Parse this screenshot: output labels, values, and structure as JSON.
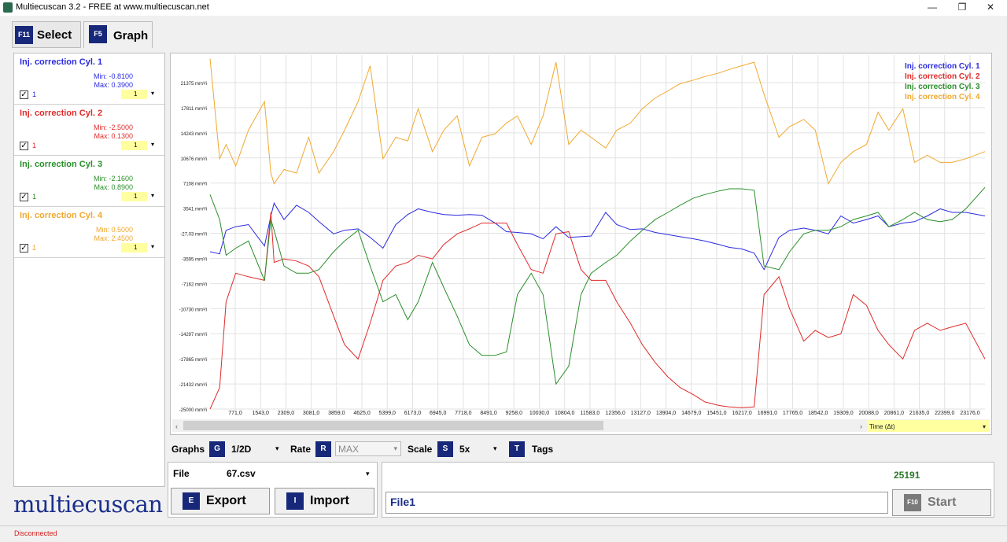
{
  "window": {
    "title": "Multiecuscan 3.2 - FREE at www.multiecuscan.net",
    "minimize": "—",
    "restore": "❐",
    "close": "✕"
  },
  "tabs": [
    {
      "key": "F11",
      "label": "Select"
    },
    {
      "key": "F5",
      "label": "Graph"
    }
  ],
  "params": [
    {
      "name": "Inj. correction Cyl. 1",
      "min": "Min: -0.8100",
      "max": "Max: 0.3900",
      "num": "1",
      "sel": "1",
      "color": "#2a2ae0"
    },
    {
      "name": "Inj. correction Cyl. 2",
      "min": "Min: -2.5000",
      "max": "Max: 0.1300",
      "num": "1",
      "sel": "1",
      "color": "#e02a2a"
    },
    {
      "name": "Inj. correction Cyl. 3",
      "min": "Min: -2.1600",
      "max": "Max: 0.8900",
      "num": "1",
      "sel": "1",
      "color": "#2a8f2a"
    },
    {
      "name": "Inj. correction Cyl. 4",
      "min": "Min: 0.5000",
      "max": "Max: 2.4500",
      "num": "1",
      "sel": "1",
      "color": "#f0a830"
    }
  ],
  "logo": "multiecuscan",
  "controls": {
    "graphs_label": "Graphs",
    "graphs_key": "G",
    "graphs_value": "1/2D",
    "rate_label": "Rate",
    "rate_key": "R",
    "rate_value": "MAX",
    "scale_label": "Scale",
    "scale_key": "S",
    "scale_value": "5x",
    "tags_key": "T",
    "tags_label": "Tags"
  },
  "file": {
    "label": "File",
    "value": "67.csv"
  },
  "buttons": {
    "export_key": "E",
    "export_label": "Export",
    "import_key": "I",
    "import_label": "Import",
    "start_key": "F10",
    "start_label": "Start"
  },
  "log_text": "File1",
  "counter": "25191",
  "status": "Disconnected",
  "time_axis_label": "Time (Δt)",
  "chart_data": {
    "type": "line",
    "y_ticks": [
      "21375 mm³/i",
      "17811 mm³/i",
      "14243 mm³/i",
      "10676 mm³/i",
      "7108 mm³/i",
      "3541 mm³/i",
      "-27,03 mm³/i",
      "-3595 mm³/i",
      "-7162 mm³/i",
      "-10730 mm³/i",
      "-14297 mm³/i",
      "-17865 mm³/i",
      "-21432 mm³/i",
      "-25000 mm³/i"
    ],
    "x_ticks": [
      "771,0",
      "1543,0",
      "2309,0",
      "3081,0",
      "3859,0",
      "4625,0",
      "5399,0",
      "6173,0",
      "6945,0",
      "7718,0",
      "8491,0",
      "9258,0",
      "10030,0",
      "10804,0",
      "11583,0",
      "12356,0",
      "13127,0",
      "13904,0",
      "14679,0",
      "15451,0",
      "16217,0",
      "16991,0",
      "17765,0",
      "18542,0",
      "19309,0",
      "20088,0",
      "20861,0",
      "21635,0",
      "22399,0",
      "23176,0"
    ],
    "x_range": [
      0,
      24200
    ],
    "ylim": [
      -25000,
      24500
    ],
    "series": [
      {
        "name": "Inj. correction Cyl. 1",
        "color": "#2a2ae0",
        "x": [
          0,
          300,
          500,
          800,
          1200,
          1700,
          1900,
          2000,
          2309,
          2700,
          3081,
          3400,
          3859,
          4200,
          4625,
          5000,
          5399,
          5800,
          6173,
          6500,
          6945,
          7300,
          7718,
          8100,
          8491,
          8900,
          9258,
          9600,
          10030,
          10400,
          10804,
          11200,
          11583,
          11900,
          12356,
          12700,
          13127,
          13500,
          13904,
          14300,
          14679,
          15100,
          15451,
          15900,
          16217,
          16600,
          16991,
          17300,
          17765,
          18100,
          18542,
          18900,
          19309,
          19700,
          20088,
          20500,
          20861,
          21200,
          21635,
          22000,
          22399,
          22800,
          23176,
          23600,
          24200
        ],
        "y": [
          -3000,
          -3300,
          0,
          500,
          800,
          -2200,
          2000,
          3800,
          1500,
          3500,
          2500,
          1200,
          -500,
          0,
          200,
          -1000,
          -2500,
          800,
          2200,
          3000,
          2500,
          2200,
          2100,
          2200,
          2100,
          1000,
          -200,
          -300,
          -500,
          -1200,
          500,
          -1000,
          -900,
          -800,
          2500,
          800,
          100,
          200,
          -300,
          -600,
          -900,
          -1200,
          -1500,
          -2000,
          -2400,
          -2600,
          -3200,
          -5500,
          -1000,
          0,
          300,
          0,
          -500,
          2000,
          1000,
          1500,
          2000,
          500,
          1000,
          1200,
          2000,
          3000,
          2500,
          2500,
          2000
        ]
      },
      {
        "name": "Inj. correction Cyl. 2",
        "color": "#e02a2a",
        "x": [
          0,
          300,
          500,
          800,
          1200,
          1700,
          1900,
          2000,
          2309,
          2700,
          3081,
          3400,
          3859,
          4200,
          4625,
          5000,
          5399,
          5800,
          6173,
          6500,
          6945,
          7300,
          7718,
          8100,
          8491,
          8900,
          9258,
          9600,
          10030,
          10400,
          10804,
          11200,
          11583,
          11900,
          12356,
          12700,
          13127,
          13500,
          13904,
          14300,
          14679,
          15100,
          15451,
          15900,
          16217,
          16600,
          16991,
          17300,
          17765,
          18100,
          18542,
          18900,
          19309,
          19700,
          20088,
          20500,
          20861,
          21200,
          21635,
          22000,
          22399,
          22800,
          23176,
          23600,
          24200
        ],
        "y": [
          -25000,
          -22000,
          -10000,
          -6000,
          -6500,
          -7000,
          2500,
          -4500,
          -4000,
          -4300,
          -5000,
          -6500,
          -12000,
          -16000,
          -18000,
          -13000,
          -7000,
          -5000,
          -4500,
          -3500,
          -4000,
          -2000,
          -500,
          200,
          1000,
          1000,
          1000,
          -2000,
          -5500,
          -6000,
          -500,
          -200,
          -5500,
          -7000,
          -7000,
          -10000,
          -13000,
          -16000,
          -18500,
          -20500,
          -22000,
          -23000,
          -24000,
          -24500,
          -24700,
          -24800,
          -24700,
          -9000,
          -6500,
          -11000,
          -15500,
          -14000,
          -15000,
          -14500,
          -9000,
          -10500,
          -14000,
          -16000,
          -18000,
          -14000,
          -13000,
          -14000,
          -13500,
          -13000,
          -18000
        ]
      },
      {
        "name": "Inj. correction Cyl. 3",
        "color": "#2a8f2a",
        "x": [
          0,
          300,
          500,
          800,
          1200,
          1700,
          1900,
          2000,
          2309,
          2700,
          3081,
          3400,
          3859,
          4200,
          4625,
          5000,
          5399,
          5800,
          6173,
          6500,
          6945,
          7300,
          7718,
          8100,
          8491,
          8900,
          9258,
          9600,
          10030,
          10400,
          10804,
          11200,
          11583,
          11900,
          12356,
          12700,
          13127,
          13500,
          13904,
          14300,
          14679,
          15100,
          15451,
          15900,
          16217,
          16600,
          16991,
          17300,
          17765,
          18100,
          18542,
          18900,
          19309,
          19700,
          20088,
          20500,
          20861,
          21200,
          21635,
          22000,
          22399,
          22800,
          23176,
          23600,
          24200
        ],
        "y": [
          5000,
          1500,
          -3500,
          -2500,
          -1500,
          -7000,
          1500,
          0,
          -5000,
          -6000,
          -6000,
          -5500,
          -3000,
          -1500,
          0,
          -5000,
          -10000,
          -9000,
          -12500,
          -10000,
          -4500,
          -8000,
          -12000,
          -16000,
          -17500,
          -17500,
          -17000,
          -9000,
          -6000,
          -9000,
          -21500,
          -19000,
          -9000,
          -6000,
          -4500,
          -3500,
          -1500,
          0,
          1500,
          2500,
          3500,
          4500,
          5000,
          5500,
          5800,
          5800,
          5600,
          -5000,
          -5500,
          -3000,
          -500,
          0,
          0,
          500,
          1500,
          2000,
          2500,
          500,
          1500,
          2500,
          1500,
          1200,
          1500,
          3000,
          6000
        ]
      },
      {
        "name": "Inj. correction Cyl. 4",
        "color": "#f0a830",
        "x": [
          0,
          300,
          500,
          800,
          1200,
          1700,
          1900,
          2000,
          2309,
          2700,
          3081,
          3400,
          3859,
          4200,
          4625,
          5000,
          5399,
          5800,
          6173,
          6500,
          6945,
          7300,
          7718,
          8100,
          8491,
          8900,
          9258,
          9600,
          10030,
          10400,
          10804,
          11200,
          11583,
          11900,
          12356,
          12700,
          13127,
          13500,
          13904,
          14300,
          14679,
          15100,
          15451,
          15900,
          16217,
          16600,
          16991,
          17300,
          17765,
          18100,
          18542,
          18900,
          19309,
          19700,
          20088,
          20500,
          20861,
          21200,
          21635,
          22000,
          22399,
          22800,
          23176,
          23600,
          24200
        ],
        "y": [
          24000,
          10000,
          12000,
          9000,
          14000,
          18000,
          8000,
          6500,
          8500,
          8000,
          13000,
          8000,
          11000,
          14000,
          18000,
          23000,
          10000,
          13000,
          12500,
          17000,
          11000,
          14000,
          16000,
          9000,
          13000,
          13500,
          15000,
          16000,
          12000,
          16000,
          23500,
          12000,
          14000,
          13000,
          11500,
          14000,
          15000,
          17000,
          18500,
          19500,
          20500,
          21000,
          21500,
          22000,
          22500,
          23000,
          23500,
          19000,
          13000,
          14500,
          15500,
          14000,
          6500,
          9500,
          11000,
          12000,
          16500,
          14000,
          17000,
          9500,
          10500,
          9500,
          9500,
          10000,
          11000
        ]
      }
    ]
  }
}
